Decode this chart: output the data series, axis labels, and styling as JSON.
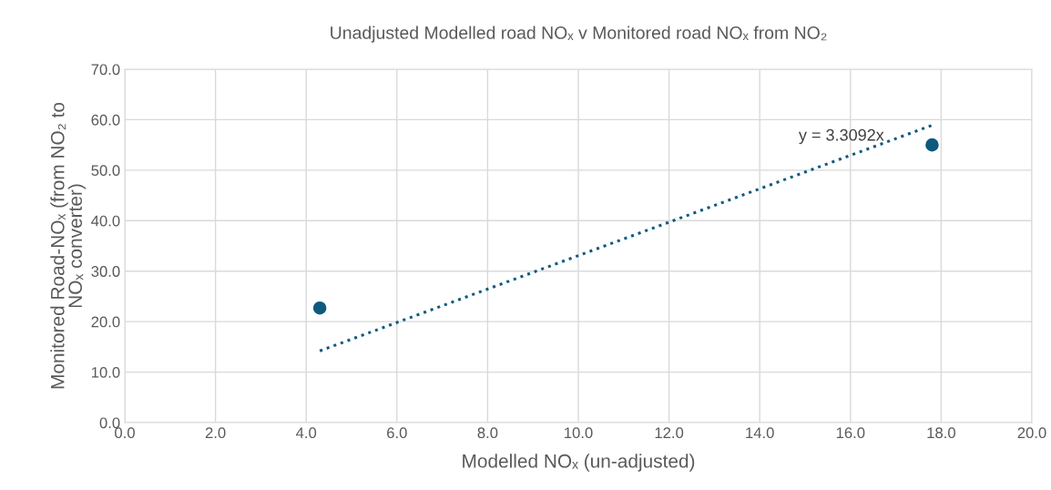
{
  "chart_data": {
    "type": "scatter",
    "title": "Unadjusted Modelled road NOₓ v Monitored road NOₓ from NO₂",
    "xlabel": "Modelled NOₓ (un-adjusted)",
    "ylabel": "Monitored Road-NOₓ (from NO₂ to\nNOₓ converter)",
    "series": [
      {
        "color": "#0e5a7e",
        "values": [
          22.7,
          55.0
        ],
        "marker": "circle"
      },
      {
        "type": "line",
        "color": "#0e5a7e",
        "values": [
          14.2,
          58.9
        ],
        "line_style": "dotted",
        "marker": "none"
      }
    ],
    "x": [
      4.3,
      17.8
    ],
    "annotations": [
      "y = 3.3092x"
    ],
    "xlim": [
      0,
      20
    ],
    "ylim": [
      0,
      70
    ],
    "xticks": [
      {
        "value": 0,
        "label": "0.0"
      },
      {
        "value": 2,
        "label": "2.0"
      },
      {
        "value": 4,
        "label": "4.0"
      },
      {
        "value": 6,
        "label": "6.0"
      },
      {
        "value": 8,
        "label": "8.0"
      },
      {
        "value": 10,
        "label": "10.0"
      },
      {
        "value": 12,
        "label": "12.0"
      },
      {
        "value": 14,
        "label": "14.0"
      },
      {
        "value": 16,
        "label": "16.0"
      },
      {
        "value": 18,
        "label": "18.0"
      },
      {
        "value": 20,
        "label": "20.0"
      }
    ],
    "yticks": [
      {
        "value": 0,
        "label": "0.0"
      },
      {
        "value": 10,
        "label": "10.0"
      },
      {
        "value": 20,
        "label": "20.0"
      },
      {
        "value": 30,
        "label": "30.0"
      },
      {
        "value": 40,
        "label": "40.0"
      },
      {
        "value": 50,
        "label": "50.0"
      },
      {
        "value": 60,
        "label": "60.0"
      },
      {
        "value": 70,
        "label": "70.0"
      }
    ],
    "grid": true,
    "legend": false
  }
}
